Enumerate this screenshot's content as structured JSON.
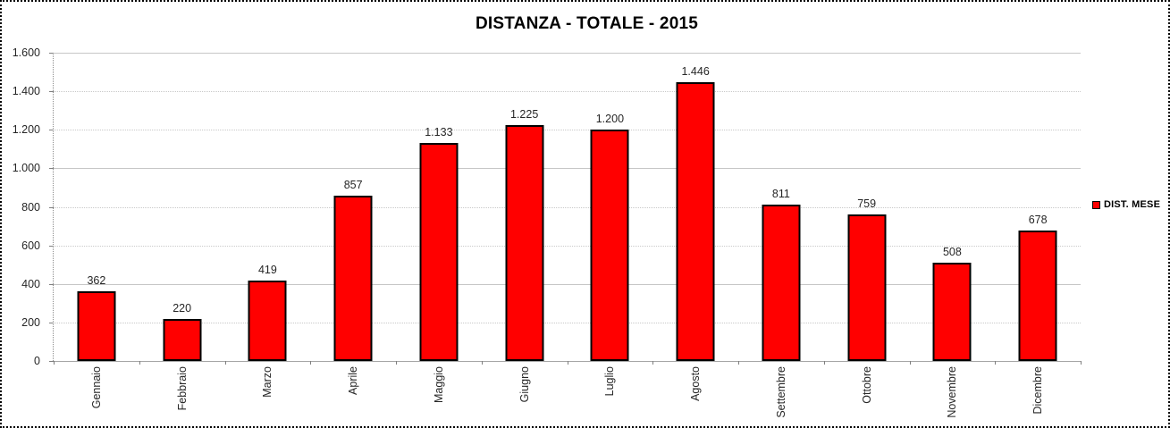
{
  "title": "DISTANZA - TOTALE - 2015",
  "legend": {
    "label": "DIST. MESE",
    "swatch_color": "#ff0000"
  },
  "chart_data": {
    "type": "bar",
    "title": "DISTANZA - TOTALE - 2015",
    "categories": [
      "Gennaio",
      "Febbraio",
      "Marzo",
      "Aprile",
      "Maggio",
      "Giugno",
      "Luglio",
      "Agosto",
      "Settembre",
      "Ottobre",
      "Novembre",
      "Dicembre"
    ],
    "series": [
      {
        "name": "DIST. MESE",
        "values": [
          362,
          220,
          419,
          857,
          1133,
          1225,
          1200,
          1446,
          811,
          759,
          508,
          678
        ],
        "value_labels": [
          "362",
          "220",
          "419",
          "857",
          "1.133",
          "1.225",
          "1.200",
          "1.446",
          "811",
          "759",
          "508",
          "678"
        ],
        "color": "#ff0000"
      }
    ],
    "xlabel": "",
    "ylabel": "",
    "ylim": [
      0,
      1600
    ],
    "y_tick_step": 200,
    "y_tick_labels": [
      "0",
      "200",
      "400",
      "600",
      "800",
      "1.000",
      "1.200",
      "1.400",
      "1.600"
    ],
    "grid": true,
    "legend_position": "right"
  }
}
